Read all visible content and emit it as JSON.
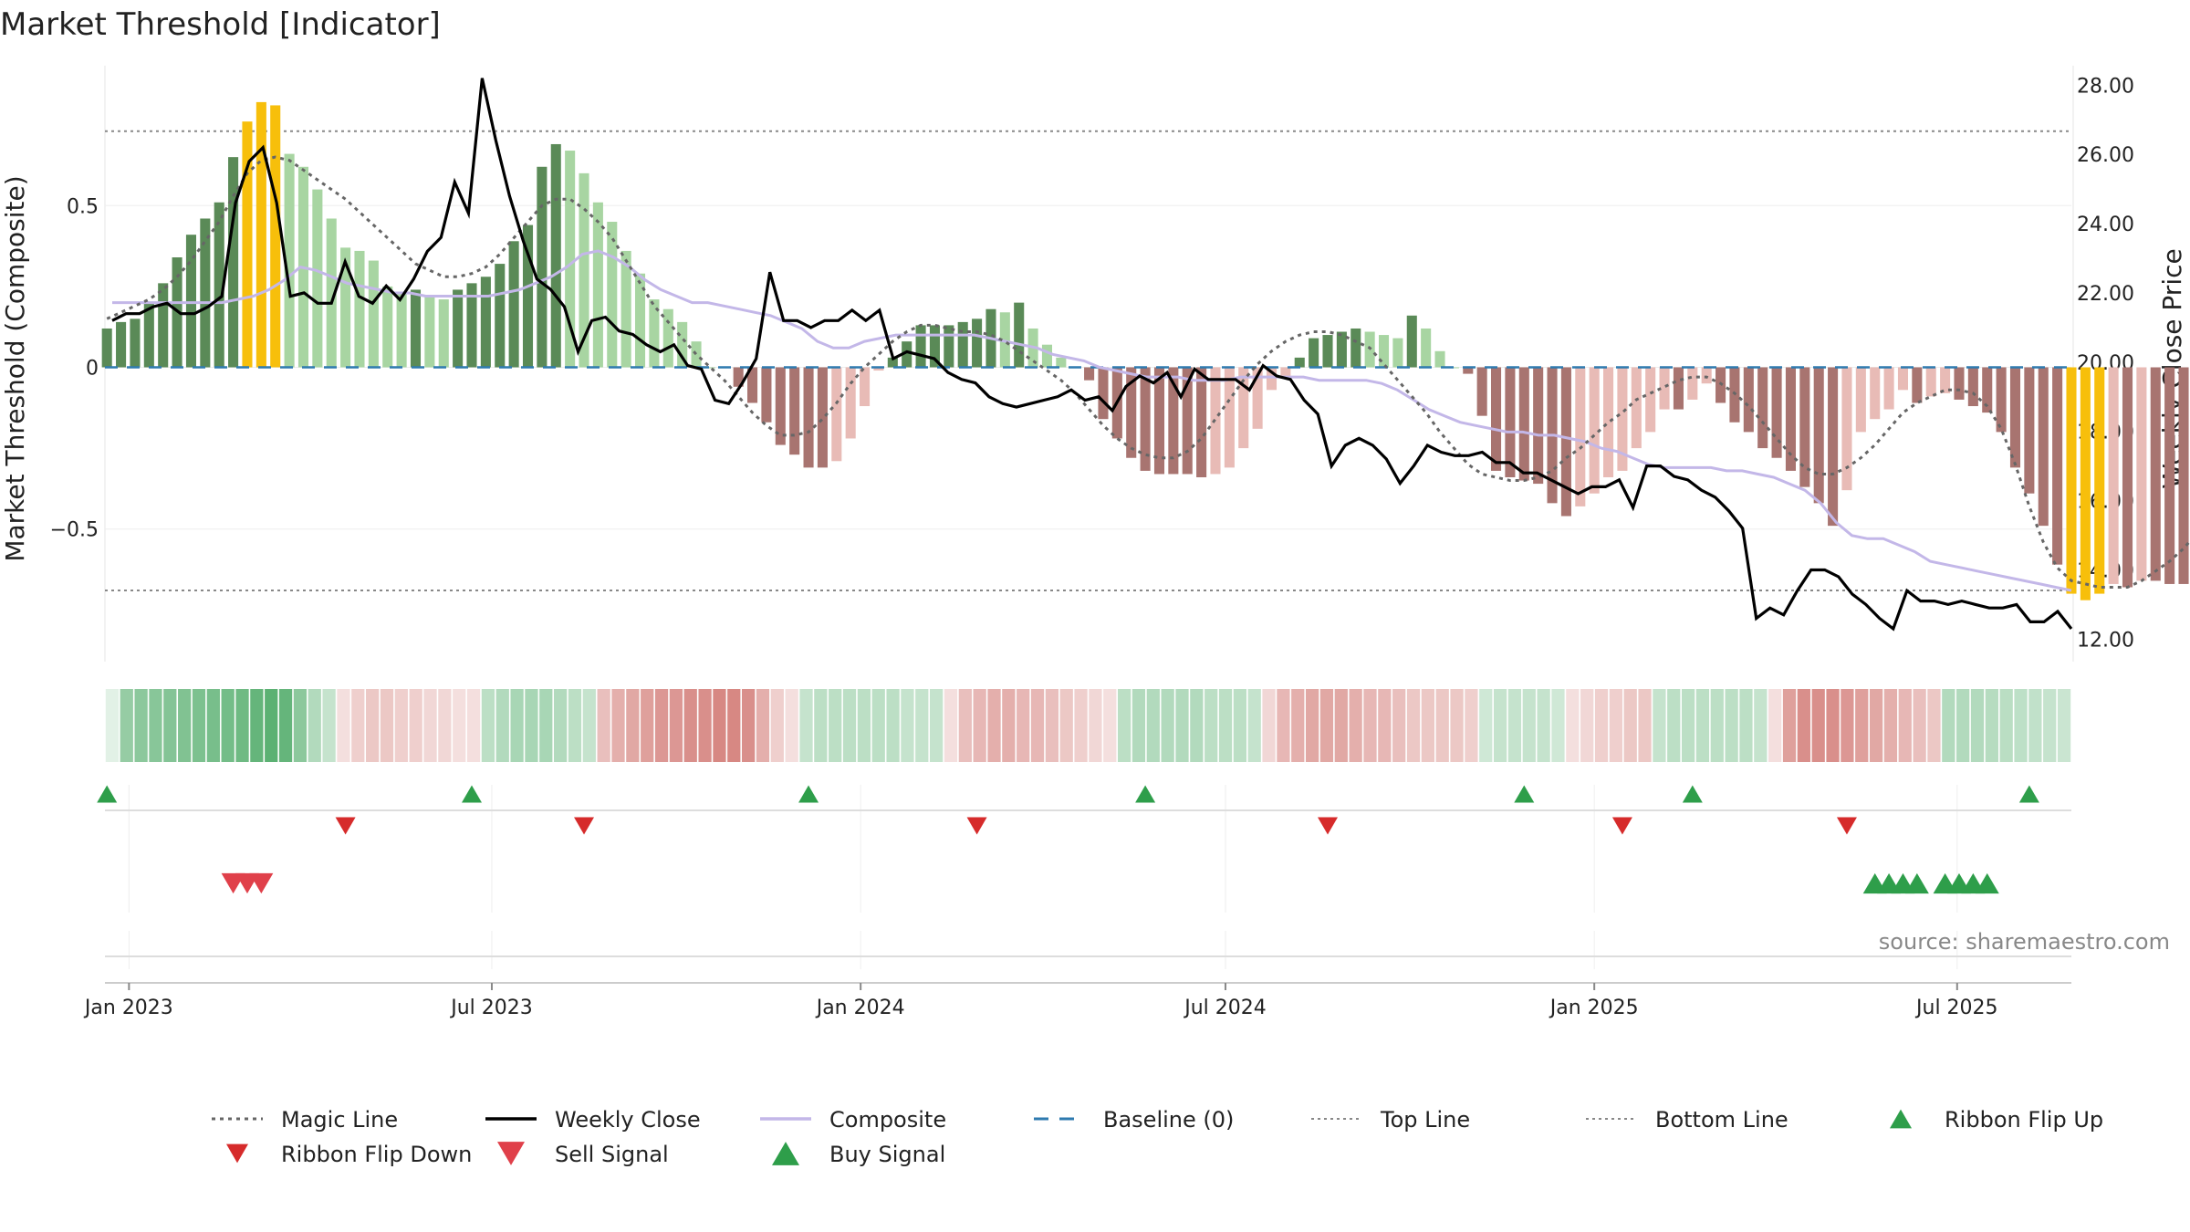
{
  "chart_data": {
    "type": "bar",
    "title": "Market Threshold [Indicator]",
    "ylabel": "Market Threshold (Composite)",
    "y2label": "Weekly Close Price",
    "source": "source: sharemaestro.com",
    "ylim": [
      -0.91,
      0.91
    ],
    "y2lim": [
      11.35,
      28.35
    ],
    "xlim": [
      "2022-12-20",
      "2025-08-27"
    ],
    "yticks": [
      {
        "value": 0.5,
        "label": "0.5"
      },
      {
        "value": 0,
        "label": "0"
      },
      {
        "value": -0.5,
        "label": "−0.5"
      }
    ],
    "y2ticks": [
      "12.00",
      "14.00",
      "16.00",
      "18.00",
      "20.00",
      "22.00",
      "24.00",
      "26.00",
      "28.00"
    ],
    "xticks": [
      {
        "date": "2023-01-01",
        "label": "Jan 2023"
      },
      {
        "date": "2023-07-01",
        "label": "Jul 2023"
      },
      {
        "date": "2024-01-01",
        "label": "Jan 2024"
      },
      {
        "date": "2024-07-01",
        "label": "Jul 2024"
      },
      {
        "date": "2025-01-01",
        "label": "Jan 2025"
      },
      {
        "date": "2025-07-01",
        "label": "Jul 2025"
      }
    ],
    "start_date": "2022-12-21",
    "week_days": 7,
    "top_line": 0.73,
    "bottom_line": -0.69,
    "composite": [
      0.12,
      0.14,
      0.15,
      0.2,
      0.26,
      0.34,
      0.41,
      0.46,
      0.51,
      0.65,
      0.76,
      0.82,
      0.81,
      0.66,
      0.62,
      0.55,
      0.46,
      0.37,
      0.36,
      0.33,
      0.25,
      0.23,
      0.24,
      0.22,
      0.21,
      0.24,
      0.26,
      0.28,
      0.32,
      0.39,
      0.44,
      0.62,
      0.69,
      0.67,
      0.6,
      0.51,
      0.45,
      0.36,
      0.29,
      0.21,
      0.18,
      0.14,
      0.08,
      0,
      0,
      -0.06,
      -0.11,
      -0.17,
      -0.24,
      -0.27,
      -0.31,
      -0.31,
      -0.29,
      -0.22,
      -0.12,
      -0.01,
      0.03,
      0.08,
      0.13,
      0.13,
      0.13,
      0.14,
      0.15,
      0.18,
      0.17,
      0.2,
      0.12,
      0.07,
      0.03,
      0,
      -0.04,
      -0.16,
      -0.22,
      -0.28,
      -0.32,
      -0.33,
      -0.33,
      -0.33,
      -0.34,
      -0.33,
      -0.31,
      -0.25,
      -0.19,
      -0.07,
      -0.03,
      0.03,
      0.09,
      0.1,
      0.11,
      0.12,
      0.11,
      0.1,
      0.09,
      0.16,
      0.12,
      0.05,
      0,
      -0.02,
      -0.15,
      -0.32,
      -0.34,
      -0.35,
      -0.36,
      -0.42,
      -0.46,
      -0.43,
      -0.39,
      -0.34,
      -0.32,
      -0.25,
      -0.2,
      -0.13,
      -0.13,
      -0.1,
      -0.05,
      -0.11,
      -0.17,
      -0.2,
      -0.25,
      -0.28,
      -0.32,
      -0.37,
      -0.42,
      -0.49,
      -0.38,
      -0.2,
      -0.16,
      -0.13,
      -0.07,
      -0.11,
      -0.09,
      -0.08,
      -0.1,
      -0.12,
      -0.14,
      -0.2,
      -0.31,
      -0.39,
      -0.49,
      -0.61,
      -0.7,
      -0.72,
      -0.7,
      -0.67,
      -0.68,
      -0.66,
      -0.66,
      -0.67,
      -0.67,
      -0.57,
      -0.45,
      -0.42,
      -0.39,
      -0.35,
      -0.33,
      -0.3,
      -0.38,
      -0.44,
      -0.45,
      -0.46,
      -0.47,
      -0.48,
      -0.47,
      -0.48
    ],
    "weekly_close": [
      21.2,
      21.4,
      21.4,
      21.6,
      21.7,
      21.4,
      21.4,
      21.6,
      21.9,
      24.6,
      25.8,
      26.2,
      24.6,
      21.9,
      22,
      21.7,
      21.7,
      22.9,
      21.9,
      21.7,
      22.2,
      21.8,
      22.4,
      23.2,
      23.6,
      25.2,
      24.3,
      28.2,
      26.4,
      24.8,
      23.5,
      22.4,
      22.1,
      21.6,
      20.3,
      21.2,
      21.3,
      20.9,
      20.8,
      20.5,
      20.3,
      20.5,
      19.9,
      19.8,
      18.9,
      18.8,
      19.4,
      20.1,
      22.6,
      21.2,
      21.2,
      21,
      21.2,
      21.2,
      21.5,
      21.2,
      21.5,
      20.1,
      20.3,
      20.2,
      20.1,
      19.7,
      19.5,
      19.4,
      19,
      18.8,
      18.7,
      18.8,
      18.9,
      19,
      19.2,
      18.9,
      19,
      18.6,
      19.3,
      19.6,
      19.4,
      19.7,
      19,
      19.8,
      19.5,
      19.5,
      19.5,
      19.2,
      19.9,
      19.6,
      19.5,
      18.9,
      18.5,
      17,
      17.6,
      17.8,
      17.6,
      17.2,
      16.5,
      17,
      17.6,
      17.4,
      17.3,
      17.3,
      17.4,
      17.1,
      17.1,
      16.8,
      16.8,
      16.6,
      16.4,
      16.2,
      16.4,
      16.4,
      16.6,
      15.8,
      17,
      17,
      16.7,
      16.6,
      16.3,
      16.1,
      15.7,
      15.2,
      12.6,
      12.9,
      12.7,
      13.4,
      14,
      14,
      13.8,
      13.3,
      13,
      12.6,
      12.3,
      13.4,
      13.1,
      13.1,
      13,
      13.1,
      13,
      12.9,
      12.9,
      13,
      12.5,
      12.5,
      12.8,
      12.3
    ],
    "magic_line": [
      0.15,
      0.17,
      0.19,
      0.21,
      0.24,
      0.28,
      0.33,
      0.39,
      0.45,
      0.53,
      0.6,
      0.64,
      0.65,
      0.64,
      0.61,
      0.58,
      0.55,
      0.52,
      0.48,
      0.44,
      0.4,
      0.36,
      0.32,
      0.3,
      0.28,
      0.28,
      0.29,
      0.31,
      0.35,
      0.4,
      0.45,
      0.5,
      0.52,
      0.52,
      0.49,
      0.45,
      0.4,
      0.33,
      0.26,
      0.19,
      0.14,
      0.09,
      0.04,
      0,
      -0.04,
      -0.09,
      -0.14,
      -0.18,
      -0.21,
      -0.21,
      -0.2,
      -0.16,
      -0.11,
      -0.05,
      0,
      0.04,
      0.08,
      0.11,
      0.13,
      0.13,
      0.12,
      0.11,
      0.11,
      0.1,
      0.08,
      0.05,
      0.02,
      -0.01,
      -0.04,
      -0.08,
      -0.13,
      -0.18,
      -0.22,
      -0.25,
      -0.27,
      -0.28,
      -0.28,
      -0.26,
      -0.22,
      -0.16,
      -0.1,
      -0.04,
      0.01,
      0.05,
      0.08,
      0.1,
      0.11,
      0.11,
      0.1,
      0.08,
      0.06,
      0.01,
      -0.04,
      -0.09,
      -0.14,
      -0.2,
      -0.25,
      -0.3,
      -0.33,
      -0.34,
      -0.35,
      -0.35,
      -0.34,
      -0.32,
      -0.28,
      -0.25,
      -0.21,
      -0.17,
      -0.14,
      -0.1,
      -0.08,
      -0.06,
      -0.04,
      -0.03,
      -0.03,
      -0.05,
      -0.08,
      -0.12,
      -0.17,
      -0.22,
      -0.27,
      -0.31,
      -0.33,
      -0.33,
      -0.31,
      -0.28,
      -0.24,
      -0.19,
      -0.14,
      -0.11,
      -0.09,
      -0.07,
      -0.07,
      -0.08,
      -0.12,
      -0.19,
      -0.3,
      -0.43,
      -0.54,
      -0.62,
      -0.66,
      -0.67,
      -0.68,
      -0.68,
      -0.68,
      -0.66,
      -0.63,
      -0.6,
      -0.56,
      -0.51,
      -0.46,
      -0.43,
      -0.41,
      -0.41,
      -0.42,
      -0.43,
      -0.45,
      -0.46,
      -0.47,
      -0.47
    ],
    "composite_line": [
      0.2,
      0.2,
      0.2,
      0.2,
      0.2,
      0.2,
      0.2,
      0.2,
      0.21,
      0.22,
      0.24,
      0.27,
      0.31,
      0.3,
      0.28,
      0.26,
      0.25,
      0.24,
      0.23,
      0.23,
      0.22,
      0.22,
      0.22,
      0.22,
      0.22,
      0.23,
      0.24,
      0.26,
      0.28,
      0.31,
      0.35,
      0.36,
      0.34,
      0.31,
      0.27,
      0.24,
      0.22,
      0.2,
      0.2,
      0.19,
      0.18,
      0.17,
      0.16,
      0.14,
      0.12,
      0.08,
      0.06,
      0.06,
      0.08,
      0.09,
      0.1,
      0.1,
      0.1,
      0.1,
      0.1,
      0.1,
      0.09,
      0.08,
      0.07,
      0.06,
      0.04,
      0.03,
      0.02,
      0,
      -0.01,
      -0.02,
      -0.03,
      -0.03,
      -0.03,
      -0.04,
      -0.04,
      -0.04,
      -0.03,
      -0.03,
      -0.03,
      -0.03,
      -0.03,
      -0.04,
      -0.04,
      -0.04,
      -0.04,
      -0.05,
      -0.07,
      -0.1,
      -0.13,
      -0.15,
      -0.17,
      -0.18,
      -0.19,
      -0.2,
      -0.2,
      -0.21,
      -0.21,
      -0.22,
      -0.23,
      -0.25,
      -0.26,
      -0.28,
      -0.3,
      -0.31,
      -0.31,
      -0.31,
      -0.31,
      -0.32,
      -0.32,
      -0.33,
      -0.34,
      -0.36,
      -0.38,
      -0.42,
      -0.48,
      -0.52,
      -0.53,
      -0.53,
      -0.55,
      -0.57,
      -0.6,
      -0.61,
      -0.62,
      -0.63,
      -0.64,
      -0.65,
      -0.66,
      -0.67,
      -0.68,
      -0.69
    ],
    "ribbon": [
      0.05,
      0.55,
      0.6,
      0.62,
      0.64,
      0.66,
      0.68,
      0.7,
      0.72,
      0.75,
      0.8,
      0.85,
      0.8,
      0.6,
      0.4,
      0.3,
      -0.2,
      -0.3,
      -0.35,
      -0.35,
      -0.3,
      -0.3,
      -0.25,
      -0.25,
      -0.2,
      -0.2,
      0.35,
      0.4,
      0.45,
      0.45,
      0.45,
      0.4,
      0.35,
      0.3,
      -0.4,
      -0.5,
      -0.55,
      -0.6,
      -0.65,
      -0.65,
      -0.7,
      -0.7,
      -0.75,
      -0.75,
      -0.7,
      -0.5,
      -0.3,
      -0.2,
      0.3,
      0.35,
      0.35,
      0.35,
      0.35,
      0.35,
      0.35,
      0.3,
      0.3,
      0.3,
      -0.2,
      -0.4,
      -0.45,
      -0.5,
      -0.5,
      -0.45,
      -0.45,
      -0.4,
      -0.35,
      -0.3,
      -0.25,
      -0.2,
      0.35,
      0.4,
      0.4,
      0.4,
      0.4,
      0.4,
      0.35,
      0.35,
      0.35,
      0.3,
      -0.25,
      -0.45,
      -0.5,
      -0.55,
      -0.55,
      -0.55,
      -0.5,
      -0.45,
      -0.45,
      -0.4,
      -0.35,
      -0.35,
      -0.35,
      -0.35,
      -0.3,
      0.25,
      0.3,
      0.3,
      0.3,
      0.3,
      0.25,
      -0.2,
      -0.25,
      -0.3,
      -0.3,
      -0.35,
      -0.35,
      0.3,
      0.35,
      0.35,
      0.35,
      0.35,
      0.35,
      0.35,
      0.3,
      -0.2,
      -0.6,
      -0.7,
      -0.7,
      -0.7,
      -0.65,
      -0.6,
      -0.55,
      -0.5,
      -0.45,
      -0.4,
      -0.35,
      0.4,
      0.4,
      0.4,
      0.38,
      0.36,
      0.34,
      0.32,
      0.3,
      0.28
    ],
    "ribbon_flip_up_weeks": [
      0,
      26,
      50,
      74,
      101,
      113,
      137
    ],
    "ribbon_flip_down_weeks": [
      17,
      34,
      62,
      87,
      108,
      124
    ],
    "sell_signal_weeks": [
      9,
      10,
      11
    ],
    "buy_signal_weeks": [
      126,
      127,
      128,
      129,
      131,
      132,
      133,
      134
    ],
    "legend": [
      {
        "label": "Magic Line",
        "kind": "dotted",
        "color": "#666666"
      },
      {
        "label": "Weekly Close",
        "kind": "solid",
        "color": "#000000"
      },
      {
        "label": "Composite",
        "kind": "solid",
        "color": "#c3b7e8"
      },
      {
        "label": "Baseline (0)",
        "kind": "dashed",
        "color": "#2e7aaf"
      },
      {
        "label": "Top Line",
        "kind": "fine-dotted",
        "color": "#888888"
      },
      {
        "label": "Bottom Line",
        "kind": "fine-dotted",
        "color": "#888888"
      },
      {
        "label": "Ribbon Flip Up",
        "kind": "tri-up",
        "color": "#2e9e4a"
      },
      {
        "label": "Ribbon Flip Down",
        "kind": "tri-down",
        "color": "#d62b2b"
      },
      {
        "label": "Sell Signal",
        "kind": "tri-down-big",
        "color": "#e0404a"
      },
      {
        "label": "Buy Signal",
        "kind": "tri-up-big",
        "color": "#2e9e4a"
      }
    ],
    "colors": {
      "bar_strong_up": "#5a8a57",
      "bar_weak_up": "#a8d5a2",
      "bar_strong_down": "#a87470",
      "bar_weak_down": "#e8bbb6",
      "bar_extreme": "#f7bf0b",
      "weekly_close": "#000000",
      "composite_line": "#c3b7e8",
      "magic_line": "#666666",
      "baseline": "#2e7aaf",
      "ribbon_up": "#3fa35a",
      "ribbon_down": "#c9605a",
      "flip_up": "#2e9e4a",
      "flip_down": "#d62b2b",
      "sell": "#e0404a",
      "buy": "#2e9e4a"
    }
  }
}
